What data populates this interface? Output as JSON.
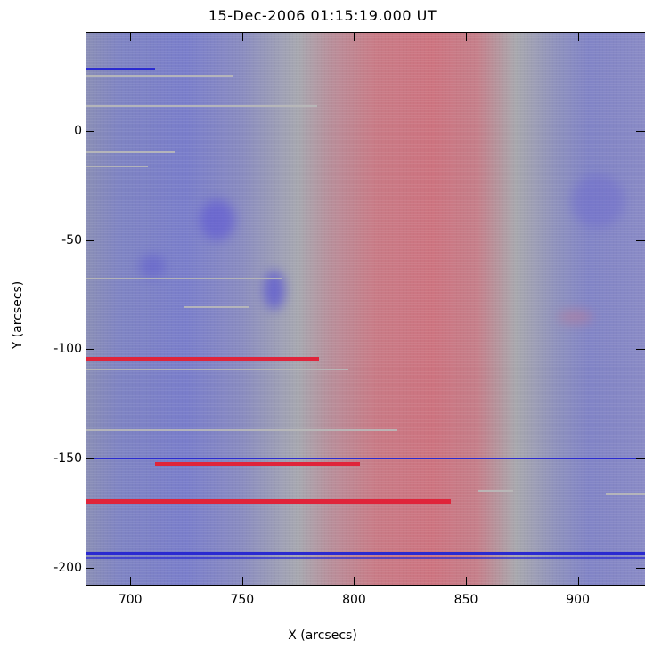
{
  "title": "15-Dec-2006 01:15:19.000 UT",
  "xlabel": "X (arcsecs)",
  "ylabel": "Y (arcsecs)",
  "x_ticks": [
    "700",
    "750",
    "800",
    "850",
    "900"
  ],
  "y_ticks": [
    "0",
    "-50",
    "-100",
    "-150",
    "-200"
  ],
  "x_range": [
    680,
    930
  ],
  "y_range": [
    -208,
    45
  ],
  "colors": {
    "redshift": "#e0243a",
    "blueshift": "#2a2ad0",
    "neutral": "#a8a8ae"
  }
}
